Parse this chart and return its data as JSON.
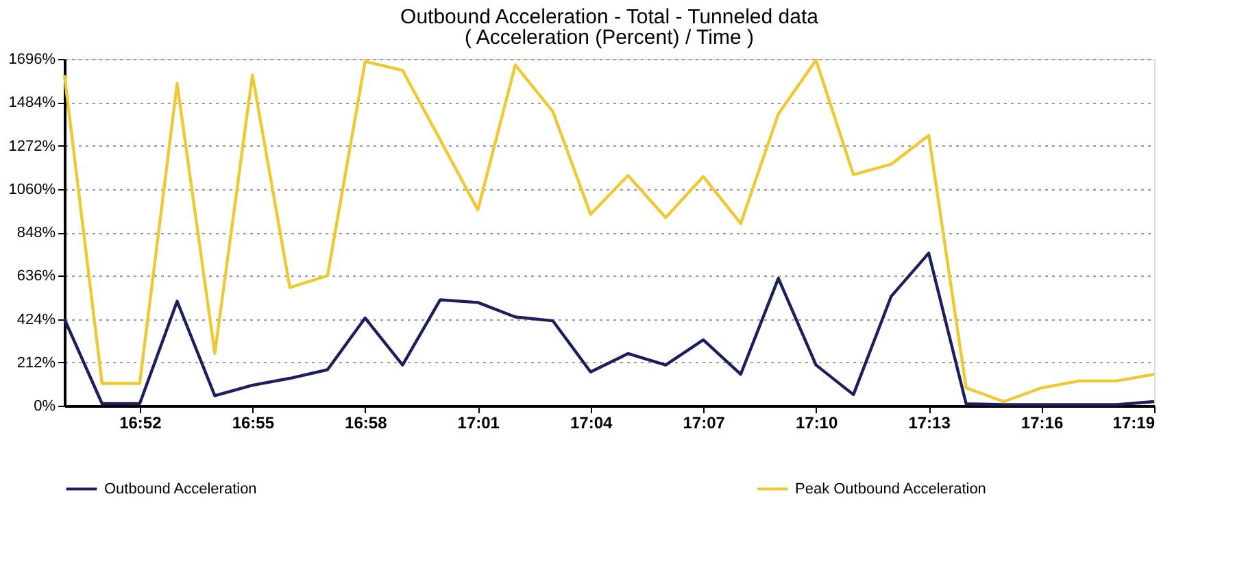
{
  "chart_data": {
    "type": "line",
    "title": "Outbound Acceleration - Total - Tunneled data",
    "subtitle": "( Acceleration (Percent) / Time )",
    "x": [
      16.8333,
      16.85,
      16.8667,
      16.8833,
      16.9,
      16.9167,
      16.9333,
      16.95,
      16.9667,
      16.9833,
      17.0,
      17.0167,
      17.0333,
      17.05,
      17.0667,
      17.0833,
      17.1,
      17.1167,
      17.1333,
      17.15,
      17.1667,
      17.1833,
      17.2,
      17.2167,
      17.2333,
      17.25,
      17.2667,
      17.2833,
      17.3,
      17.3167
    ],
    "series": [
      {
        "name": "Outbound Acceleration",
        "color": "#1c1f5e",
        "values": [
          424,
          10,
          10,
          511,
          49,
          100,
          134,
          176,
          429,
          199,
          518,
          505,
          434,
          415,
          165,
          255,
          199,
          322,
          154,
          623,
          199,
          54,
          534,
          746,
          9,
          5,
          5,
          5,
          5,
          20
        ]
      },
      {
        "name": "Peak Outbound Acceleration",
        "color": "#f0c832",
        "values": [
          1617,
          109,
          109,
          1575,
          255,
          1617,
          578,
          636,
          1684,
          1640,
          1300,
          958,
          1666,
          1438,
          936,
          1126,
          920,
          1121,
          891,
          1427,
          1690,
          1130,
          1181,
          1322,
          87,
          20,
          87,
          121,
          121,
          154
        ]
      }
    ],
    "xlim": [
      16.8333,
      17.3167
    ],
    "xticks": [
      {
        "value": 16.8667,
        "label": "16:52"
      },
      {
        "value": 16.9167,
        "label": "16:55"
      },
      {
        "value": 16.9667,
        "label": "16:58"
      },
      {
        "value": 17.0167,
        "label": "17:01"
      },
      {
        "value": 17.0667,
        "label": "17:04"
      },
      {
        "value": 17.1167,
        "label": "17:07"
      },
      {
        "value": 17.1667,
        "label": "17:10"
      },
      {
        "value": 17.2167,
        "label": "17:13"
      },
      {
        "value": 17.2667,
        "label": "17:16"
      },
      {
        "value": 17.3167,
        "label": "17:19"
      }
    ],
    "ylim": [
      0,
      1696
    ],
    "yticks": [
      {
        "value": 0,
        "label": "0%"
      },
      {
        "value": 212,
        "label": "212%"
      },
      {
        "value": 424,
        "label": "424%"
      },
      {
        "value": 636,
        "label": "636%"
      },
      {
        "value": 848,
        "label": "848%"
      },
      {
        "value": 1060,
        "label": "1060%"
      },
      {
        "value": 1272,
        "label": "1272%"
      },
      {
        "value": 1484,
        "label": "1484%"
      },
      {
        "value": 1696,
        "label": "1696%"
      }
    ],
    "grid": "y",
    "legend": "bottom",
    "marker": "none",
    "line_style": "solid"
  }
}
